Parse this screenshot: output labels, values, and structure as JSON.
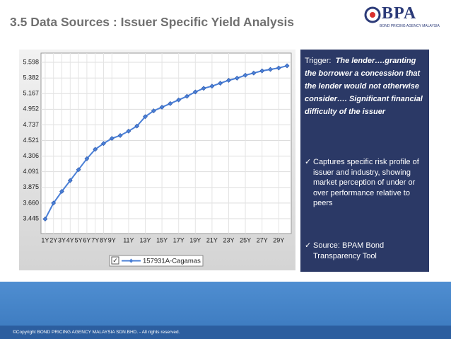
{
  "slide": {
    "title": "3.5 Data Sources : Issuer Specific Yield Analysis",
    "logo": {
      "name": "BPA",
      "tagline": "BOND PRICING AGENCY MALAYSIA"
    },
    "panel": {
      "trigger_label": "Trigger:",
      "trigger_text": "The lender….granting the borrower a concession that the lender would not otherwise consider…. Significant financial difficulty of the issuer",
      "bullets": [
        "Captures specific risk profile of issuer and industry, showing market perception of under or over performance relative to peers",
        "Source: BPAM Bond Transparency Tool"
      ]
    },
    "footer": "©Copyright BOND PRICING AGENCY MALAYSIA SDN.BHD. - All rights reserved."
  },
  "chart_data": {
    "type": "line",
    "categories": [
      "1Y",
      "2Y",
      "3Y",
      "4Y",
      "5Y",
      "6Y",
      "7Y",
      "8Y",
      "9Y",
      null,
      "11Y",
      null,
      "13Y",
      null,
      "15Y",
      null,
      "17Y",
      null,
      "19Y",
      null,
      "21Y",
      null,
      "23Y",
      null,
      "25Y",
      null,
      "27Y",
      null,
      "29Y",
      null
    ],
    "series": [
      {
        "name": "157931A-Cagamas",
        "color": "#4a7fd6",
        "values": [
          3.44,
          3.66,
          3.82,
          3.97,
          4.12,
          4.27,
          4.4,
          4.48,
          4.55,
          4.59,
          4.65,
          4.72,
          4.85,
          4.93,
          4.98,
          5.03,
          5.08,
          5.13,
          5.19,
          5.24,
          5.27,
          5.31,
          5.35,
          5.38,
          5.42,
          5.45,
          5.48,
          5.5,
          5.52,
          5.55
        ]
      }
    ],
    "ylim": [
      3.24,
      5.725
    ],
    "yticks": [
      3.445,
      {
        "value": 3.66,
        "label": "3.660"
      },
      3.875,
      4.091,
      4.306,
      4.521,
      4.737,
      4.952,
      5.167,
      5.382,
      5.598
    ],
    "grid": true,
    "legend_check": "✓"
  }
}
